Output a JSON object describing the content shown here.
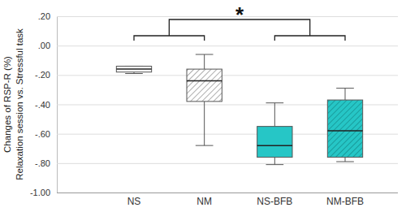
{
  "chart_data": {
    "type": "box",
    "y_label": [
      "Changes of RSP-R (%)",
      "Relaxation session vs. Stressful task"
    ],
    "categories": [
      "NS",
      "NM",
      "NS-BFB",
      "NM-BFB"
    ],
    "values": [
      {
        "min": -0.19,
        "q1": -0.18,
        "median": -0.16,
        "q3": -0.14,
        "max": -0.14
      },
      {
        "min": -0.68,
        "q1": -0.38,
        "median": -0.24,
        "q3": -0.16,
        "max": -0.06
      },
      {
        "min": -0.81,
        "q1": -0.76,
        "median": -0.68,
        "q3": -0.55,
        "max": -0.39
      },
      {
        "min": -0.79,
        "q1": -0.76,
        "median": -0.58,
        "q3": -0.37,
        "max": -0.29
      }
    ],
    "colors": [
      "#ffffff",
      "#ffffff",
      "#26c6c6",
      "#26c6c6"
    ],
    "annotations": [
      "*"
    ],
    "ylim": [
      -1.0,
      0.2
    ],
    "yticks": [
      {
        "value": 0.2,
        "label": ".20"
      },
      {
        "value": 0.0,
        "label": ".00"
      },
      {
        "value": -0.2,
        "label": "-.20"
      },
      {
        "value": -0.4,
        "label": "-.40"
      },
      {
        "value": -0.6,
        "label": "-.60"
      },
      {
        "value": -0.8,
        "label": "-.80"
      },
      {
        "value": -1.0,
        "label": "-1.00"
      }
    ],
    "grid": true
  }
}
